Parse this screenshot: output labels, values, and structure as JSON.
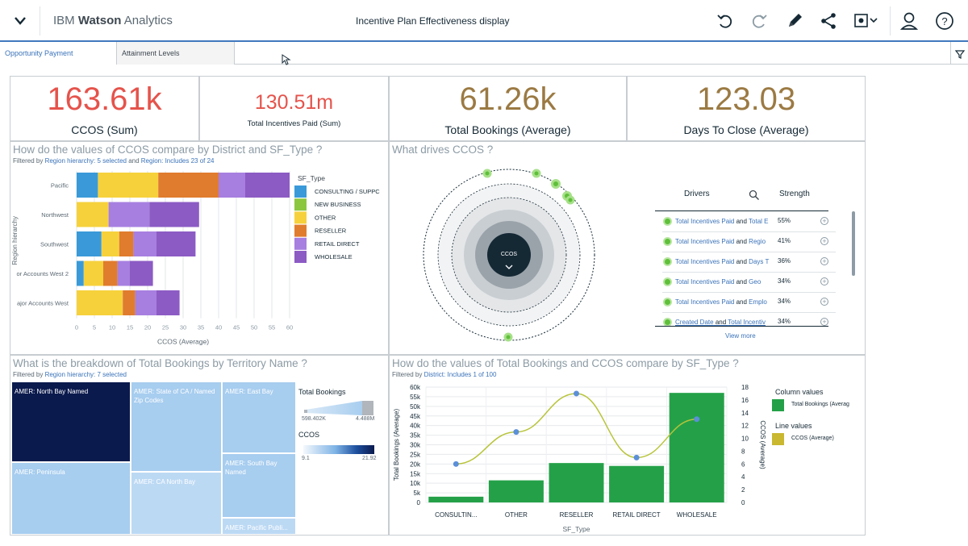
{
  "app": {
    "brand_prefix": "IBM",
    "brand_bold": "Watson",
    "brand_suffix": "Analytics",
    "doc_title": "Incentive Plan Effectiveness display"
  },
  "toolbar": {
    "icons": [
      "undo-icon",
      "redo-icon",
      "pencil-icon",
      "share-icon",
      "screenshot-icon",
      "user-icon",
      "help-icon"
    ]
  },
  "tabs": [
    {
      "label": "Opportunity Payment",
      "active": true
    },
    {
      "label": "Attainment Levels",
      "active": false
    }
  ],
  "kpis": [
    {
      "value": "163.61k",
      "label": "CCOS (Sum)",
      "color": "#e5534b"
    },
    {
      "value": "130.51m",
      "label": "Total Incentives Paid (Sum)",
      "color": "#e5534b"
    },
    {
      "value": "61.26k",
      "label": "Total Bookings (Average)",
      "color": "#9b7a43"
    },
    {
      "value": "123.03",
      "label": "Days To Close (Average)",
      "color": "#9b7a43"
    }
  ],
  "panel_ccos": {
    "title": "How do the values of  CCOS  compare by  District  and  SF_Type ?",
    "sub_prefix": "Filtered by ",
    "sub_link1": "Region hierarchy: 5 selected",
    "sub_mid": " and ",
    "sub_link2": "Region: Includes 23 of 24"
  },
  "panel_drivers": {
    "title": "What drives  CCOS ?",
    "center_label": "CCOS",
    "col_drivers": "Drivers",
    "col_strength": "Strength",
    "rows": [
      {
        "a": "Total Incentives Paid",
        "b": "Total E",
        "strength": "55%"
      },
      {
        "a": "Total Incentives Paid",
        "b": "Regio",
        "strength": "41%"
      },
      {
        "a": "Total Incentives Paid",
        "b": "Days T",
        "strength": "36%"
      },
      {
        "a": "Total Incentives Paid",
        "b": "Geo",
        "strength": "34%"
      },
      {
        "a": "Total Incentives Paid",
        "b": "Emplo",
        "strength": "34%"
      },
      {
        "a": "Created Date",
        "b": "Total Incentiv",
        "strength": "34%"
      }
    ],
    "and_word": "and",
    "view_more": "View more"
  },
  "panel_treemap": {
    "title": "What is the breakdown of  Total Bookings  by  Territory Name ?",
    "sub_prefix": "Filtered by ",
    "sub_link1": "Region hierarchy: 7 selected",
    "cells": [
      {
        "label": "AMER: North Bay Named",
        "color": "#0b1a4d",
        "text": "#ffffff"
      },
      {
        "label": "AMER: State of CA / Named Zip Codes",
        "color": "#a7cdef",
        "text": "#ffffff"
      },
      {
        "label": "AMER: East Bay",
        "color": "#a7cdef",
        "text": "#ffffff"
      },
      {
        "label": "AMER: Peninsula",
        "color": "#a7cdef",
        "text": "#ffffff"
      },
      {
        "label": "AMER: CA North Bay",
        "color": "#bcd9f4",
        "text": "#ffffff"
      },
      {
        "label": "AMER: South Bay Named",
        "color": "#a7cdef",
        "text": "#ffffff"
      },
      {
        "label": "AMER: Pacific Publi...",
        "color": "#bcd9f4",
        "text": "#ffffff"
      }
    ],
    "legend_bookings": {
      "title": "Total Bookings",
      "min": "598.402K",
      "max": "4.488M"
    },
    "legend_ccos": {
      "title": "CCOS",
      "min": "9.1",
      "max": "21.92"
    }
  },
  "panel_combo": {
    "title": "How do the values of  Total Bookings  and  CCOS  compare by  SF_Type ?",
    "sub_prefix": "Filtered by ",
    "sub_link1": "District: Includes 1 of 100",
    "legend_col_title": "Column values",
    "legend_col_item": "Total Bookings (Averag",
    "legend_line_title": "Line values",
    "legend_line_item": "CCOS (Average)"
  },
  "chart_data": [
    {
      "type": "bar",
      "orientation": "horizontal",
      "stacked": true,
      "title": "How do the values of  CCOS  compare by  District  and  SF_Type ?",
      "categories": [
        "Pacific",
        "Northwest",
        "Southwest",
        "or Accounts West 2",
        "ajor Accounts West"
      ],
      "series": [
        {
          "name": "CONSULTING / SUPPC",
          "color": "#3a9ad9",
          "values": [
            6,
            0,
            7,
            2,
            0
          ]
        },
        {
          "name": "NEW BUSINESS",
          "color": "#8cc63f",
          "values": [
            0,
            0,
            0,
            0,
            0
          ]
        },
        {
          "name": "OTHER",
          "color": "#f6d13c",
          "values": [
            17,
            9,
            5,
            5.5,
            13
          ]
        },
        {
          "name": "RESELLER",
          "color": "#e07c2e",
          "values": [
            17,
            0,
            4,
            4,
            3.5
          ]
        },
        {
          "name": "RETAIL DIRECT",
          "color": "#a77fe0",
          "values": [
            7.5,
            11.5,
            6.5,
            3.5,
            6
          ]
        },
        {
          "name": "WHOLESALE",
          "color": "#8c5bc4",
          "values": [
            12.5,
            14,
            11,
            6.5,
            6.5
          ]
        }
      ],
      "xlabel": "CCOS (Average)",
      "ylabel": "Region hierarchy",
      "xlim": [
        0,
        60
      ],
      "xticks": [
        "0",
        "5",
        "10",
        "15",
        "20",
        "25",
        "30",
        "35",
        "40",
        "45",
        "50",
        "55",
        "60"
      ],
      "legend_title": "SF_Type",
      "grid": true
    },
    {
      "type": "bar",
      "combo": "bar+line",
      "title": "How do the values of  Total Bookings  and  CCOS  compare by  SF_Type ?",
      "categories": [
        "CONSULTIN...",
        "OTHER",
        "RESELLER",
        "RETAIL DIRECT",
        "WHOLESALE"
      ],
      "series": [
        {
          "name": "Total Bookings (Average)",
          "kind": "bar",
          "axis": "left",
          "color": "#24a148",
          "values": [
            3000,
            11500,
            20500,
            19000,
            57000
          ]
        },
        {
          "name": "CCOS (Average)",
          "kind": "line",
          "axis": "right",
          "color": "#b8c43a",
          "point_color": "#5b8fd8",
          "values": [
            6,
            11,
            17,
            7,
            13
          ]
        }
      ],
      "xlabel": "SF_Type",
      "ylabel": "Total Bookings (Average)",
      "y2label": "CCOS (Average)",
      "ylim": [
        0,
        60000
      ],
      "yticks": [
        "0",
        "5k",
        "10k",
        "15k",
        "20k",
        "25k",
        "30k",
        "35k",
        "40k",
        "45k",
        "50k",
        "55k",
        "60k"
      ],
      "y2lim": [
        0,
        18
      ],
      "y2ticks": [
        "0",
        "2",
        "4",
        "6",
        "8",
        "10",
        "12",
        "14",
        "16",
        "18"
      ],
      "grid": true
    }
  ]
}
